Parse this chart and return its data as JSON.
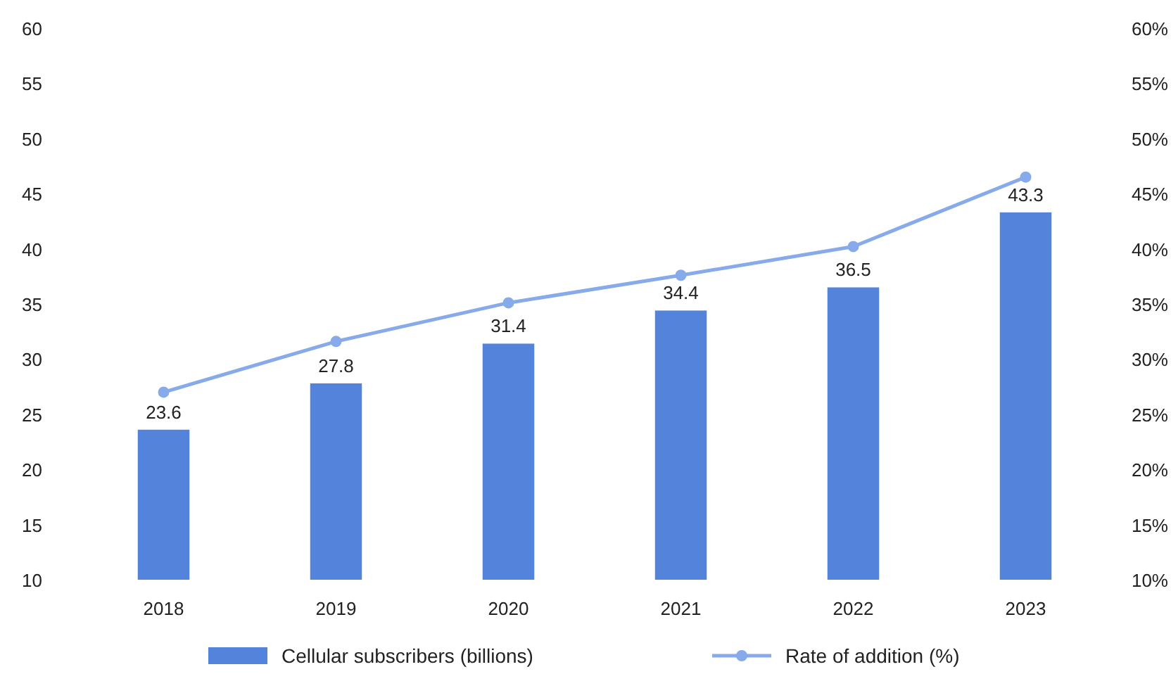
{
  "chart_data": {
    "type": "bar",
    "categories": [
      "2018",
      "2019",
      "2020",
      "2021",
      "2022",
      "2023"
    ],
    "series": [
      {
        "name": "Cellular subscribers (billions)",
        "color": "#5383db",
        "values": [
          23.6,
          27.8,
          31.4,
          34.4,
          36.5,
          43.3
        ],
        "value_labels": [
          "23.6",
          "27.8",
          "31.4",
          "34.4",
          "36.5",
          "43.3"
        ]
      },
      {
        "name": "Rate of addition (%)",
        "type": "line",
        "axis": "y2",
        "color": "#86aaea",
        "marker": "circle",
        "values": [
          27.0,
          31.6,
          35.1,
          37.6,
          40.2,
          46.5
        ]
      }
    ],
    "ylim": [
      10,
      60
    ],
    "yticks": [
      10,
      15,
      20,
      25,
      30,
      35,
      40,
      45,
      50,
      55,
      60
    ],
    "y2lim": [
      10,
      60
    ],
    "y2ticks": [
      {
        "value": 10,
        "label": "10%"
      },
      {
        "value": 15,
        "label": "15%"
      },
      {
        "value": 20,
        "label": "20%"
      },
      {
        "value": 25,
        "label": "25%"
      },
      {
        "value": 30,
        "label": "30%"
      },
      {
        "value": 35,
        "label": "35%"
      },
      {
        "value": 40,
        "label": "40%"
      },
      {
        "value": 45,
        "label": "45%"
      },
      {
        "value": 50,
        "label": "50%"
      },
      {
        "value": 55,
        "label": "55%"
      },
      {
        "value": 60,
        "label": "60%"
      }
    ],
    "grid": false,
    "legend": "bottom"
  }
}
